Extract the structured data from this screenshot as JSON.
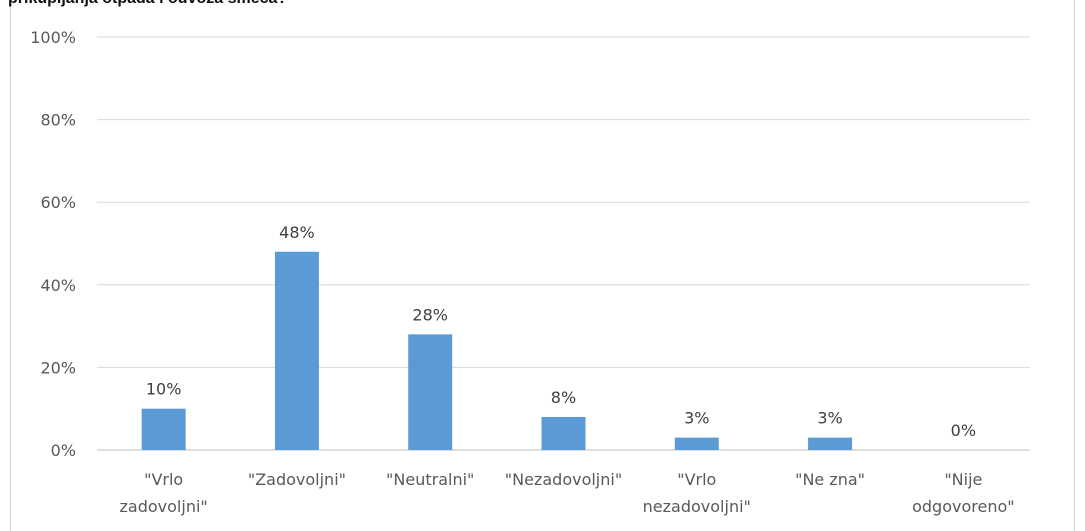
{
  "chart_data": {
    "type": "bar",
    "title": "prikupljanja otpada i odvoza smeća?",
    "categories": [
      [
        "\"Vrlo",
        "zadovoljni\""
      ],
      [
        "\"Zadovoljni\""
      ],
      [
        "\"Neutralni\""
      ],
      [
        "\"Nezadovoljni\""
      ],
      [
        "\"Vrlo",
        "nezadovoljni\""
      ],
      [
        "\"Ne zna\""
      ],
      [
        "\"Nije",
        "odgovoreno\""
      ]
    ],
    "values": [
      10,
      48,
      28,
      8,
      3,
      3,
      0
    ],
    "value_labels": [
      "10%",
      "48%",
      "28%",
      "8%",
      "3%",
      "3%",
      "0%"
    ],
    "ylim": [
      0,
      100
    ],
    "yticks": [
      0,
      20,
      40,
      60,
      80,
      100
    ],
    "ytick_labels": [
      "0%",
      "20%",
      "40%",
      "60%",
      "80%",
      "100%"
    ],
    "xlabel": "",
    "ylabel": "",
    "grid": true,
    "bar_color": "#5b9bd5",
    "grid_color": "#d9d9d9"
  }
}
